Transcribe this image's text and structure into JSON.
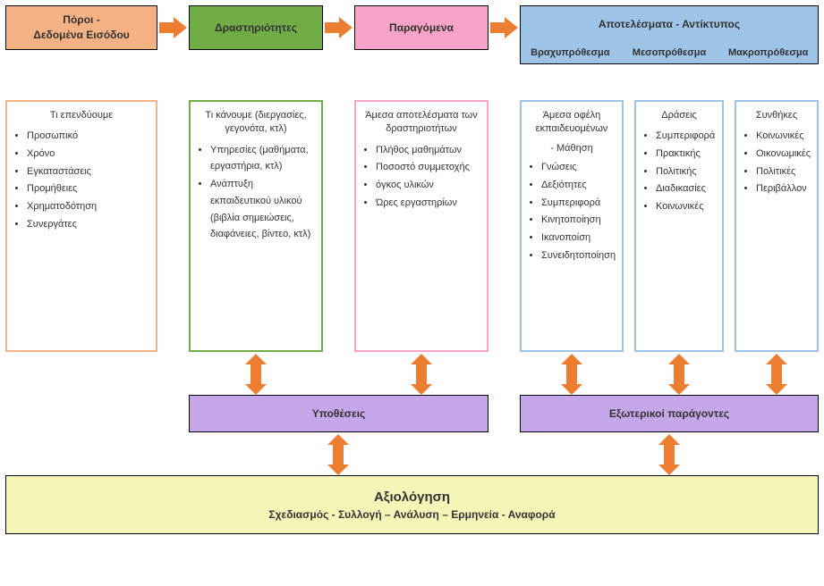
{
  "colors": {
    "arrow": "#ed7d31",
    "resources_bg": "#f4b183",
    "resources_border": "#f4b183",
    "activities_bg": "#70ad47",
    "activities_border": "#70ad47",
    "outputs_bg": "#f8a3c8",
    "outputs_border": "#f8a3c8",
    "outcomes_bg": "#9dc3e6",
    "outcomes_border": "#9dc3e6",
    "assumptions_bg": "#c5a6e8",
    "external_bg": "#c5a6e8",
    "eval_bg": "#f5f5b8",
    "text": "#333333"
  },
  "headers": {
    "resources": "Πόροι -\nΔεδομένα Εισόδου",
    "activities": "Δραστηριότητες",
    "outputs": "Παραγόμενα",
    "outcomes": "Αποτελέσματα - Αντίκτυπος",
    "outcomes_sub": [
      "Βραχυπρόθεσμα",
      "Μεσοπρόθεσμα",
      "Μακροπρόθεσμα"
    ]
  },
  "details": {
    "resources": {
      "heading": "Τι επενδύουμε",
      "items": [
        "Προσωπικό",
        "Χρόνο",
        "Εγκαταστάσεις",
        "Προμήθειες",
        "Χρηματοδότηση",
        "Συνεργάτες"
      ]
    },
    "activities": {
      "heading": "Τι κάνουμε (διεργασίες, γεγονότα, κτλ)",
      "items": [
        "Υπηρεσίες (μαθήματα, εργαστήρια, κτλ)",
        "Ανάπτυξη εκπαιδευτικού υλικού (βιβλία σημειώσεις, διαφάνειες, βίντεο, κτλ)"
      ]
    },
    "outputs": {
      "heading": "Άμεσα αποτελέσματα των δραστηριοτήτων",
      "items": [
        "Πλήθος μαθημάτων",
        "Ποσοστό συμμετοχής",
        "όγκος υλικών",
        "Ώρες εργαστηρίων"
      ]
    },
    "short": {
      "heading": "Άμεσα οφέλη εκπαιδευομένων",
      "sub": "- Μάθηση",
      "items": [
        "Γνώσεις",
        "Δεξιότητες",
        "Συμπεριφορά",
        "Κινητοποίηση",
        "Ικανοποίση",
        "Συνειδητοποίηση"
      ]
    },
    "medium": {
      "heading": "Δράσεις",
      "items": [
        "Συμπεριφορά",
        "Πρακτικής",
        "Πολιτικής",
        "Διαδικασίες",
        "Κοινωνικές"
      ]
    },
    "long": {
      "heading": "Συνθήκες",
      "items": [
        "Κοινωνικές",
        "Οικονωμικές",
        "Πολιτικές",
        "Περιβάλλον"
      ]
    }
  },
  "middle": {
    "assumptions": "Υποθέσεις",
    "external": "Εξωτερικοί παράγοντες"
  },
  "evaluation": {
    "title": "Αξιολόγηση",
    "subtitle": "Σχεδιασμός - Συλλογή – Ανάλυση – Ερμηνεία - Αναφορά"
  },
  "fontsize": {
    "header": 12,
    "detail": 11,
    "eval_title": 15
  }
}
